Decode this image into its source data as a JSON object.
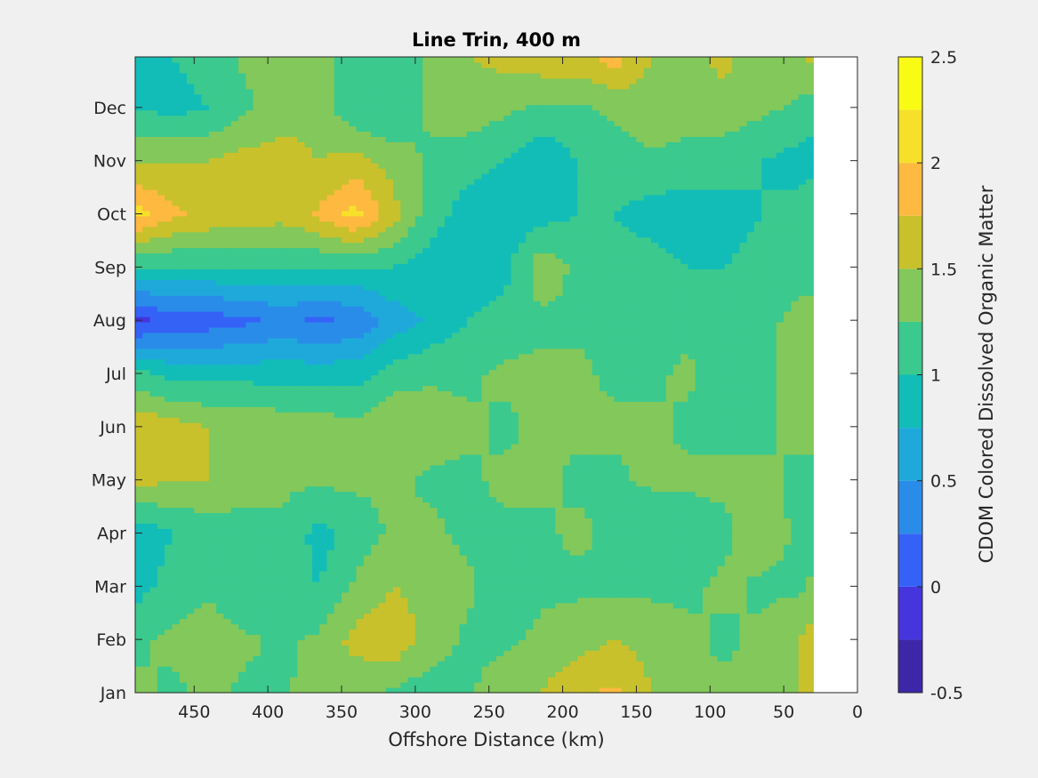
{
  "chart_data": {
    "type": "heatmap",
    "title": "Line Trin, 400 m",
    "xlabel": "Offshore Distance (km)",
    "ylabel": "",
    "x_reversed": true,
    "xlim": [
      0,
      490
    ],
    "data_x_extent": [
      30,
      490
    ],
    "x_ticks": [
      450,
      400,
      350,
      300,
      250,
      200,
      150,
      100,
      50,
      0
    ],
    "x_tick_labels": [
      "450",
      "400",
      "350",
      "300",
      "250",
      "200",
      "150",
      "100",
      "50",
      "0"
    ],
    "y_tick_labels": [
      "Jan",
      "Feb",
      "Mar",
      "Apr",
      "May",
      "Jun",
      "Jul",
      "Aug",
      "Sep",
      "Oct",
      "Nov",
      "Dec"
    ],
    "ylim": [
      1,
      12.95
    ],
    "x": [
      490,
      465,
      440,
      415,
      390,
      365,
      340,
      315,
      290,
      265,
      240,
      215,
      190,
      165,
      140,
      115,
      90,
      65,
      40,
      30
    ],
    "y": [
      "Jan",
      "Feb",
      "Mar",
      "Apr",
      "May",
      "Jun",
      "Jul",
      "Aug",
      "Sep",
      "Oct",
      "Nov",
      "Dec",
      "Jan"
    ],
    "z": [
      [
        1.3,
        1.2,
        1.3,
        1.2,
        1.2,
        1.4,
        1.3,
        1.2,
        1.1,
        1.2,
        1.4,
        1.5,
        1.7,
        1.8,
        1.5,
        1.3,
        1.3,
        1.4,
        1.5,
        1.6
      ],
      [
        1.2,
        1.3,
        1.4,
        1.3,
        1.2,
        1.3,
        1.6,
        1.7,
        1.4,
        1.2,
        1.2,
        1.3,
        1.4,
        1.5,
        1.4,
        1.3,
        1.2,
        1.3,
        1.5,
        1.6
      ],
      [
        0.9,
        1.1,
        1.2,
        1.0,
        1.1,
        1.0,
        1.3,
        1.5,
        1.4,
        1.3,
        1.1,
        1.2,
        1.2,
        1.2,
        1.2,
        1.2,
        1.3,
        1.2,
        1.2,
        1.3
      ],
      [
        0.8,
        1.0,
        1.1,
        1.1,
        1.2,
        0.9,
        1.1,
        1.3,
        1.3,
        1.2,
        1.2,
        1.2,
        1.3,
        1.2,
        1.0,
        1.1,
        1.2,
        1.4,
        1.2,
        1.1
      ],
      [
        1.6,
        1.5,
        1.5,
        1.4,
        1.3,
        1.3,
        1.3,
        1.3,
        1.2,
        1.2,
        1.3,
        1.3,
        1.2,
        1.2,
        1.3,
        1.3,
        1.3,
        1.3,
        1.2,
        1.1
      ],
      [
        1.7,
        1.6,
        1.5,
        1.5,
        1.4,
        1.4,
        1.3,
        1.5,
        1.4,
        1.3,
        1.2,
        1.3,
        1.3,
        1.3,
        1.3,
        1.2,
        1.2,
        1.2,
        1.3,
        1.4
      ],
      [
        1.1,
        0.9,
        0.9,
        0.9,
        0.9,
        0.9,
        0.9,
        1.1,
        1.2,
        1.2,
        1.3,
        1.3,
        1.3,
        1.2,
        1.2,
        1.3,
        1.0,
        1.2,
        1.3,
        1.3
      ],
      [
        -0.1,
        0.1,
        0.1,
        0.2,
        0.3,
        0.2,
        0.3,
        0.6,
        0.8,
        1.0,
        1.1,
        1.2,
        1.2,
        1.2,
        1.1,
        1.2,
        1.2,
        1.2,
        1.3,
        1.3
      ],
      [
        1.0,
        1.0,
        1.0,
        1.0,
        1.0,
        1.0,
        1.0,
        1.0,
        0.9,
        0.8,
        0.9,
        1.4,
        1.2,
        1.1,
        1.1,
        1.0,
        1.0,
        1.1,
        1.2,
        1.2
      ],
      [
        2.1,
        1.8,
        1.7,
        1.7,
        1.6,
        1.8,
        2.1,
        1.6,
        1.1,
        0.9,
        0.8,
        0.9,
        1.0,
        1.0,
        0.9,
        0.8,
        0.9,
        1.0,
        1.1,
        1.2
      ],
      [
        1.5,
        1.5,
        1.5,
        1.6,
        1.6,
        1.5,
        1.6,
        1.4,
        1.2,
        1.1,
        1.0,
        0.8,
        1.0,
        1.1,
        1.2,
        1.2,
        1.1,
        1.0,
        0.9,
        0.9
      ],
      [
        1.0,
        0.9,
        1.0,
        1.2,
        1.4,
        1.4,
        1.0,
        1.0,
        1.3,
        1.4,
        1.3,
        1.2,
        1.2,
        1.3,
        1.4,
        1.3,
        1.4,
        1.3,
        1.2,
        1.1
      ],
      [
        0.9,
        1.0,
        1.1,
        1.3,
        1.4,
        1.5,
        1.0,
        1.1,
        1.3,
        1.5,
        1.6,
        1.7,
        1.7,
        1.9,
        1.5,
        1.4,
        1.6,
        1.3,
        1.5,
        1.6
      ]
    ],
    "colorbar": {
      "label": "CDOM Colored Dissolved Organic Matter",
      "range": [
        -0.5,
        2.5
      ],
      "levels": [
        -0.5,
        -0.25,
        0,
        0.25,
        0.5,
        0.75,
        1,
        1.25,
        1.5,
        1.75,
        2,
        2.25,
        2.5
      ],
      "tick_values": [
        -0.5,
        0,
        0.5,
        1,
        1.5,
        2,
        2.5
      ],
      "tick_labels": [
        "-0.5",
        "0",
        "0.5",
        "1",
        "1.5",
        "2",
        "2.5"
      ],
      "colors": [
        "#3e26a8",
        "#4435dd",
        "#3562f6",
        "#2a8ce9",
        "#1fa9db",
        "#12bdb8",
        "#3bc98e",
        "#82c85a",
        "#c8c12c",
        "#fdb940",
        "#f6e02a",
        "#f9fb15"
      ]
    },
    "grid": false
  }
}
